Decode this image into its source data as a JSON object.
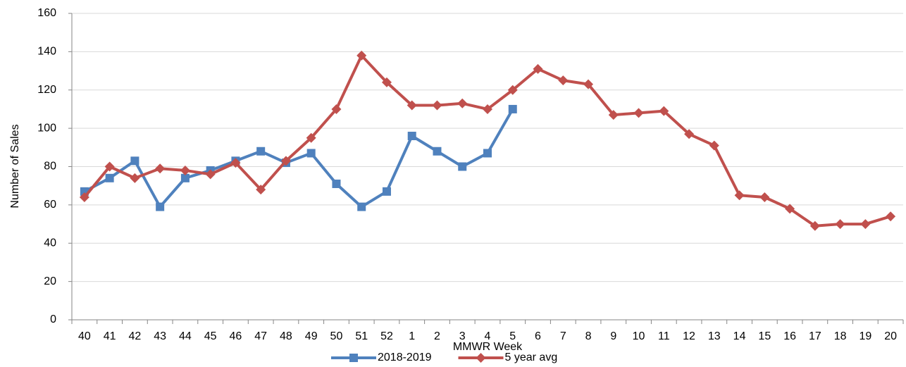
{
  "chart_data": {
    "type": "line",
    "x_label": "MMWR Week",
    "y_label": "Number of Sales",
    "categories": [
      "40",
      "41",
      "42",
      "43",
      "44",
      "45",
      "46",
      "47",
      "48",
      "49",
      "50",
      "51",
      "52",
      "1",
      "2",
      "3",
      "4",
      "5",
      "6",
      "7",
      "8",
      "9",
      "10",
      "11",
      "12",
      "13",
      "14",
      "15",
      "16",
      "17",
      "18",
      "19",
      "20"
    ],
    "series": [
      {
        "name": "2018-2019",
        "color": "#4f81bd",
        "marker": "square",
        "values": [
          67,
          74,
          83,
          59,
          74,
          78,
          83,
          88,
          82,
          87,
          71,
          59,
          67,
          96,
          88,
          80,
          87,
          110,
          null,
          null,
          null,
          null,
          null,
          null,
          null,
          null,
          null,
          null,
          null,
          null,
          null,
          null,
          null
        ]
      },
      {
        "name": "5 year avg",
        "color": "#c0504d",
        "marker": "diamond",
        "values": [
          64,
          80,
          74,
          79,
          78,
          76,
          82,
          68,
          83,
          95,
          110,
          138,
          124,
          112,
          112,
          113,
          110,
          120,
          131,
          125,
          123,
          107,
          108,
          109,
          97,
          91,
          65,
          64,
          58,
          49,
          50,
          50,
          54
        ]
      }
    ],
    "ylim": [
      0,
      160
    ],
    "yticks": [
      0,
      20,
      40,
      60,
      80,
      100,
      120,
      140,
      160
    ],
    "grid": true,
    "legend": "bottom"
  }
}
